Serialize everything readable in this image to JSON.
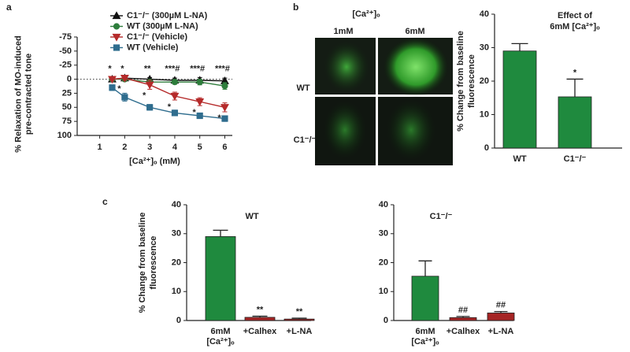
{
  "panel_labels": [
    "a",
    "b",
    "c"
  ],
  "micrographs": {
    "title": "[Ca²⁺]ₒ",
    "columns": [
      "1mM",
      "6mM"
    ],
    "rows": [
      "WT",
      "C1⁻/⁻"
    ]
  },
  "chart_data": [
    {
      "type": "line",
      "ylabel": [
        "% Relaxation of MO-induced",
        "pre-contracted tone"
      ],
      "xlabel": "[Ca²⁺]ₒ (mM)",
      "x": [
        1.5,
        2,
        3,
        4,
        5,
        6
      ],
      "xlim": [
        0.1,
        6.3
      ],
      "xticks": [
        1,
        2,
        3,
        4,
        5,
        6
      ],
      "ylim": [
        -75,
        100
      ],
      "yticks": [
        -75,
        -50,
        -25,
        0,
        25,
        50,
        75,
        100
      ],
      "y_inverted": true,
      "zero_line": true,
      "series": [
        {
          "name": "C1⁻/⁻ (300µM L-NA)",
          "color": "#111111",
          "marker": "triangle-up",
          "values": [
            0,
            -2,
            0,
            2,
            2,
            3
          ],
          "errors": [
            2,
            3,
            3,
            4,
            5,
            5
          ]
        },
        {
          "name": "WT (300µM L-NA)",
          "color": "#2e7d3c",
          "marker": "circle",
          "values": [
            0,
            0,
            5,
            5,
            5,
            12
          ],
          "errors": [
            2,
            3,
            4,
            4,
            5,
            6
          ]
        },
        {
          "name": "C1⁻/⁻ (Vehicle)",
          "color": "#b52a2a",
          "marker": "triangle-down",
          "values": [
            0,
            -2,
            10,
            30,
            40,
            50
          ],
          "errors": [
            2,
            4,
            8,
            7,
            7,
            8
          ]
        },
        {
          "name": "WT (Vehicle)",
          "color": "#2f6d8e",
          "marker": "square",
          "values": [
            15,
            32,
            50,
            60,
            65,
            70
          ],
          "errors": [
            5,
            7,
            5,
            5,
            4,
            5
          ]
        }
      ],
      "significance_top": [
        "*",
        "*",
        "**",
        "***#",
        "***#",
        "***#"
      ],
      "significance_bottom": [
        null,
        "*",
        "*",
        "*",
        "*",
        "*"
      ]
    },
    {
      "type": "bar",
      "title": [
        "Effect of",
        "6mM [Ca²⁺]ₒ"
      ],
      "ylabel": [
        "% Change from baseline",
        "fluorescence"
      ],
      "categories": [
        "WT",
        "C1⁻/⁻"
      ],
      "values": [
        29,
        15.3
      ],
      "errors": [
        2.2,
        5.3
      ],
      "colors": [
        "#1f8a3e",
        "#1f8a3e"
      ],
      "significance": [
        null,
        "*"
      ],
      "ylim": [
        0,
        40
      ],
      "yticks": [
        0,
        10,
        20,
        30,
        40
      ]
    },
    {
      "type": "bar",
      "title": [
        "WT"
      ],
      "ylabel": [
        "% Change from baseline",
        "fluorescence"
      ],
      "categories": [
        [
          "6mM",
          "[Ca²⁺]ₒ"
        ],
        "+Calhex",
        "+L-NA"
      ],
      "values": [
        29,
        1.1,
        0.5
      ],
      "errors": [
        2.2,
        0.4,
        0.3
      ],
      "colors": [
        "#1f8a3e",
        "#a52424",
        "#a52424"
      ],
      "significance": [
        null,
        "**",
        "**"
      ],
      "ylim": [
        0,
        40
      ],
      "yticks": [
        0,
        10,
        20,
        30,
        40
      ]
    },
    {
      "type": "bar",
      "title": [
        "C1⁻/⁻"
      ],
      "categories": [
        [
          "6mM",
          "[Ca²⁺]ₒ"
        ],
        "+Calhex",
        "+L-NA"
      ],
      "values": [
        15.3,
        1,
        2.6
      ],
      "errors": [
        5.3,
        0.4,
        0.5
      ],
      "colors": [
        "#1f8a3e",
        "#a52424",
        "#a52424"
      ],
      "significance": [
        null,
        "##",
        "##"
      ],
      "ylim": [
        0,
        40
      ],
      "yticks": [
        0,
        10,
        20,
        30,
        40
      ]
    }
  ]
}
